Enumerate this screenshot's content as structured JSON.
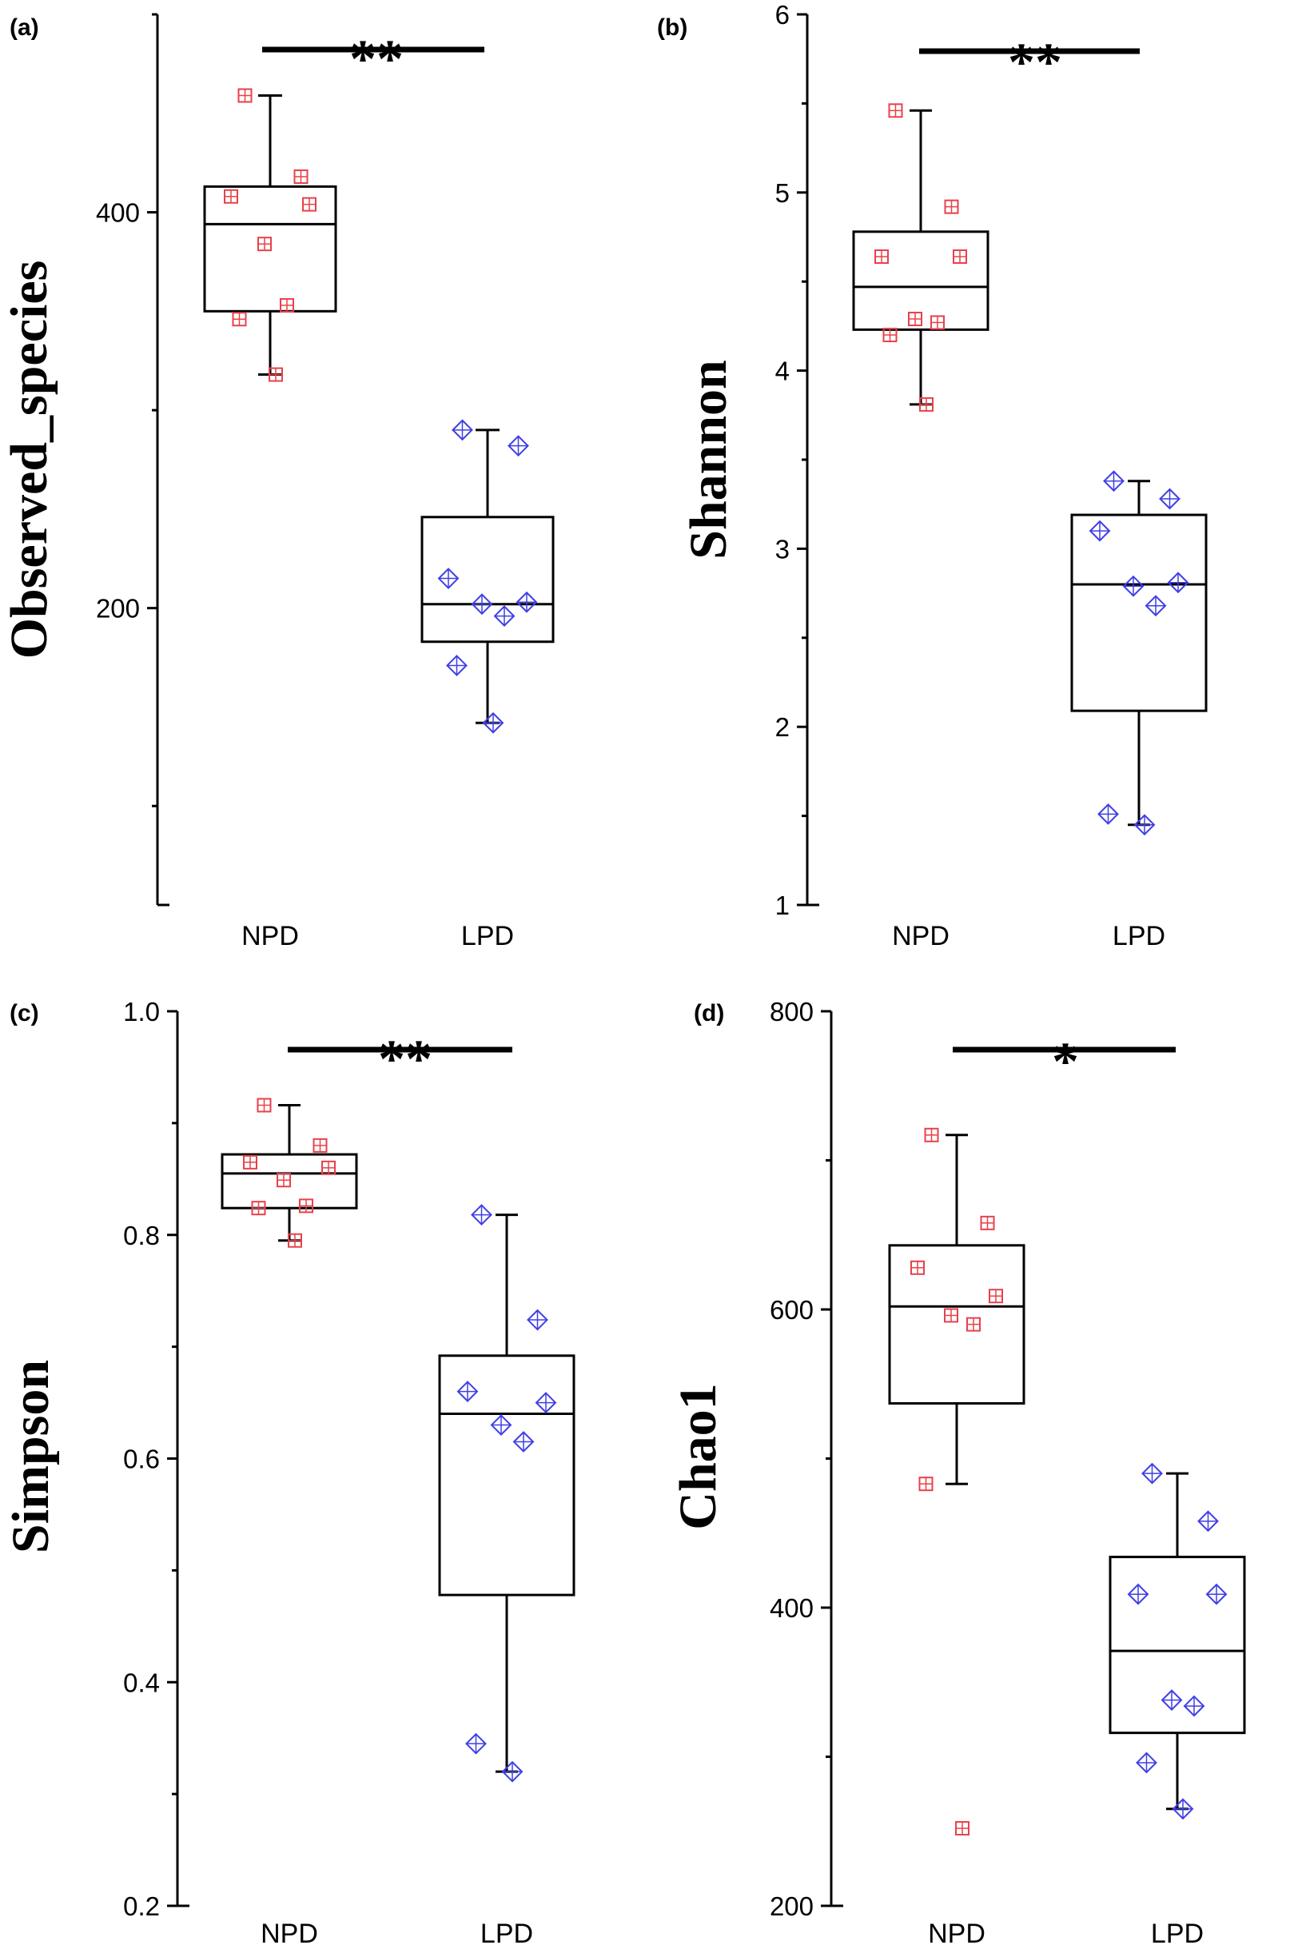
{
  "chart_data": [
    {
      "type": "box",
      "panel": "(a)",
      "ylabel": "Observed_species",
      "ylim": [
        50,
        500
      ],
      "yticks": [
        400,
        200
      ],
      "categories": [
        "NPD",
        "LPD"
      ],
      "significance": "**",
      "groups": [
        {
          "name": "NPD",
          "color": "#e8414a",
          "marker": "square",
          "box": {
            "min": 318,
            "q1": 350,
            "median": 394,
            "q3": 413,
            "max": 459
          },
          "points": [
            459,
            418,
            408,
            404,
            384,
            353,
            346,
            318
          ]
        },
        {
          "name": "LPD",
          "color": "#3f3fe6",
          "marker": "diamond",
          "box": {
            "min": 142,
            "q1": 183,
            "median": 202,
            "q3": 246,
            "max": 290
          },
          "points": [
            290,
            282,
            215,
            203,
            202,
            196,
            171,
            142
          ]
        }
      ]
    },
    {
      "type": "box",
      "panel": "(b)",
      "ylabel": "Shannon",
      "ylim": [
        1,
        6
      ],
      "yticks": [
        1,
        2,
        3,
        4,
        5,
        6
      ],
      "categories": [
        "NPD",
        "LPD"
      ],
      "significance": "**",
      "groups": [
        {
          "name": "NPD",
          "color": "#e8414a",
          "marker": "square",
          "box": {
            "min": 3.81,
            "q1": 4.23,
            "median": 4.47,
            "q3": 4.78,
            "max": 5.46
          },
          "points": [
            5.46,
            4.92,
            4.64,
            4.64,
            4.29,
            4.27,
            4.2,
            3.81
          ]
        },
        {
          "name": "LPD",
          "color": "#3f3fe6",
          "marker": "diamond",
          "box": {
            "min": 1.45,
            "q1": 2.09,
            "median": 2.8,
            "q3": 3.19,
            "max": 3.38
          },
          "points": [
            3.38,
            3.28,
            3.1,
            2.81,
            2.79,
            2.68,
            1.51,
            1.45
          ]
        }
      ]
    },
    {
      "type": "box",
      "panel": "(c)",
      "ylabel": "Simpson",
      "ylim": [
        0.2,
        1.0
      ],
      "yticks": [
        0.2,
        0.4,
        0.6,
        0.8,
        1.0
      ],
      "ytick_labels": [
        "0.2",
        "0.4",
        "0.6",
        "0.8",
        "1.0"
      ],
      "categories": [
        "NPD",
        "LPD"
      ],
      "significance": "**",
      "groups": [
        {
          "name": "NPD",
          "color": "#e8414a",
          "marker": "square",
          "box": {
            "min": 0.795,
            "q1": 0.824,
            "median": 0.855,
            "q3": 0.872,
            "max": 0.916
          },
          "points": [
            0.916,
            0.88,
            0.865,
            0.86,
            0.849,
            0.826,
            0.824,
            0.795
          ]
        },
        {
          "name": "LPD",
          "color": "#3f3fe6",
          "marker": "diamond",
          "box": {
            "min": 0.32,
            "q1": 0.478,
            "median": 0.64,
            "q3": 0.692,
            "max": 0.818
          },
          "points": [
            0.818,
            0.724,
            0.66,
            0.65,
            0.63,
            0.615,
            0.345,
            0.32
          ]
        }
      ]
    },
    {
      "type": "box",
      "panel": "(d)",
      "ylabel": "Chao1",
      "ylim": [
        200,
        800
      ],
      "yticks": [
        200,
        400,
        600,
        800
      ],
      "categories": [
        "NPD",
        "LPD"
      ],
      "significance": "*",
      "groups": [
        {
          "name": "NPD",
          "color": "#e8414a",
          "marker": "square",
          "box": {
            "min": 483,
            "q1": 537,
            "median": 602,
            "q3": 643,
            "max": 717
          },
          "points": [
            717,
            658,
            628,
            609,
            596,
            590,
            483,
            252
          ]
        },
        {
          "name": "LPD",
          "color": "#3f3fe6",
          "marker": "diamond",
          "box": {
            "min": 265,
            "q1": 316,
            "median": 371,
            "q3": 434,
            "max": 490
          },
          "points": [
            490,
            458,
            409,
            409,
            338,
            334,
            296,
            265
          ]
        }
      ]
    }
  ]
}
